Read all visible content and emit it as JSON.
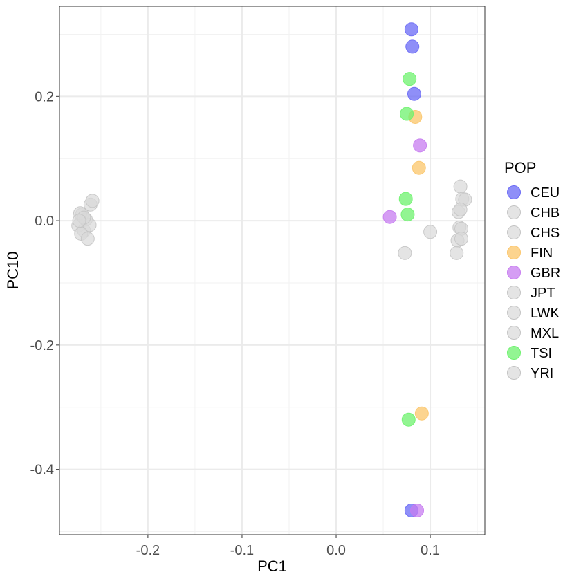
{
  "chart_data": {
    "type": "scatter",
    "xlabel": "PC1",
    "ylabel": "PC10",
    "xlim": [
      -0.294,
      0.158
    ],
    "ylim": [
      -0.505,
      0.345
    ],
    "x_ticks": [
      -0.2,
      -0.1,
      0.0,
      0.1
    ],
    "x_tick_labels": [
      "-0.2",
      "-0.1",
      "0.0",
      "0.1"
    ],
    "y_ticks": [
      -0.4,
      -0.2,
      0.0,
      0.2
    ],
    "y_tick_labels": [
      "-0.4",
      "-0.2",
      "0.0",
      "0.2"
    ],
    "grid": true,
    "legend": {
      "title": "POP",
      "position": "right",
      "entries": [
        "CEU",
        "CHB",
        "CHS",
        "FIN",
        "GBR",
        "JPT",
        "LWK",
        "MXL",
        "TSI",
        "YRI"
      ]
    },
    "colors": {
      "CEU": "#6a6af5",
      "CHB": "#d9d9d9",
      "CHS": "#d9d9d9",
      "FIN": "#fbc56a",
      "GBR": "#c77cf0",
      "JPT": "#d9d9d9",
      "LWK": "#d9d9d9",
      "MXL": "#d9d9d9",
      "TSI": "#6ef26e",
      "YRI": "#d9d9d9"
    },
    "series": [
      {
        "name": "CEU",
        "points": [
          [
            0.08,
            0.308
          ],
          [
            0.081,
            0.28
          ],
          [
            0.083,
            0.204
          ],
          [
            0.08,
            -0.466
          ]
        ]
      },
      {
        "name": "FIN",
        "points": [
          [
            0.084,
            0.167
          ],
          [
            0.088,
            0.085
          ],
          [
            0.091,
            -0.31
          ]
        ]
      },
      {
        "name": "GBR",
        "points": [
          [
            0.089,
            0.121
          ],
          [
            0.057,
            0.006
          ],
          [
            0.086,
            -0.466
          ]
        ]
      },
      {
        "name": "TSI",
        "points": [
          [
            0.078,
            0.228
          ],
          [
            0.075,
            0.172
          ],
          [
            0.074,
            0.035
          ],
          [
            0.076,
            0.01
          ],
          [
            0.077,
            -0.32
          ]
        ]
      },
      {
        "name": "CHB",
        "points": [
          [
            -0.27,
            0.01
          ],
          [
            -0.261,
            0.026
          ],
          [
            -0.274,
            -0.008
          ],
          [
            -0.266,
            0.002
          ]
        ]
      },
      {
        "name": "CHS",
        "points": [
          [
            -0.259,
            0.032
          ],
          [
            -0.268,
            -0.016
          ],
          [
            -0.272,
            0.012
          ],
          [
            -0.262,
            -0.007
          ]
        ]
      },
      {
        "name": "JPT",
        "points": [
          [
            -0.271,
            -0.021
          ],
          [
            -0.264,
            -0.029
          ],
          [
            -0.268,
            0.005
          ],
          [
            -0.273,
            0.0
          ]
        ]
      },
      {
        "name": "LWK",
        "points": [
          [
            0.132,
            0.055
          ],
          [
            0.134,
            0.035
          ],
          [
            0.137,
            0.034
          ],
          [
            0.13,
            0.014
          ]
        ]
      },
      {
        "name": "MXL",
        "points": [
          [
            0.132,
            0.018
          ],
          [
            0.131,
            -0.011
          ],
          [
            0.1,
            -0.018
          ],
          [
            0.073,
            -0.052
          ]
        ]
      },
      {
        "name": "YRI",
        "points": [
          [
            0.133,
            -0.013
          ],
          [
            0.129,
            -0.032
          ],
          [
            0.133,
            -0.029
          ],
          [
            0.128,
            -0.052
          ]
        ]
      }
    ]
  }
}
